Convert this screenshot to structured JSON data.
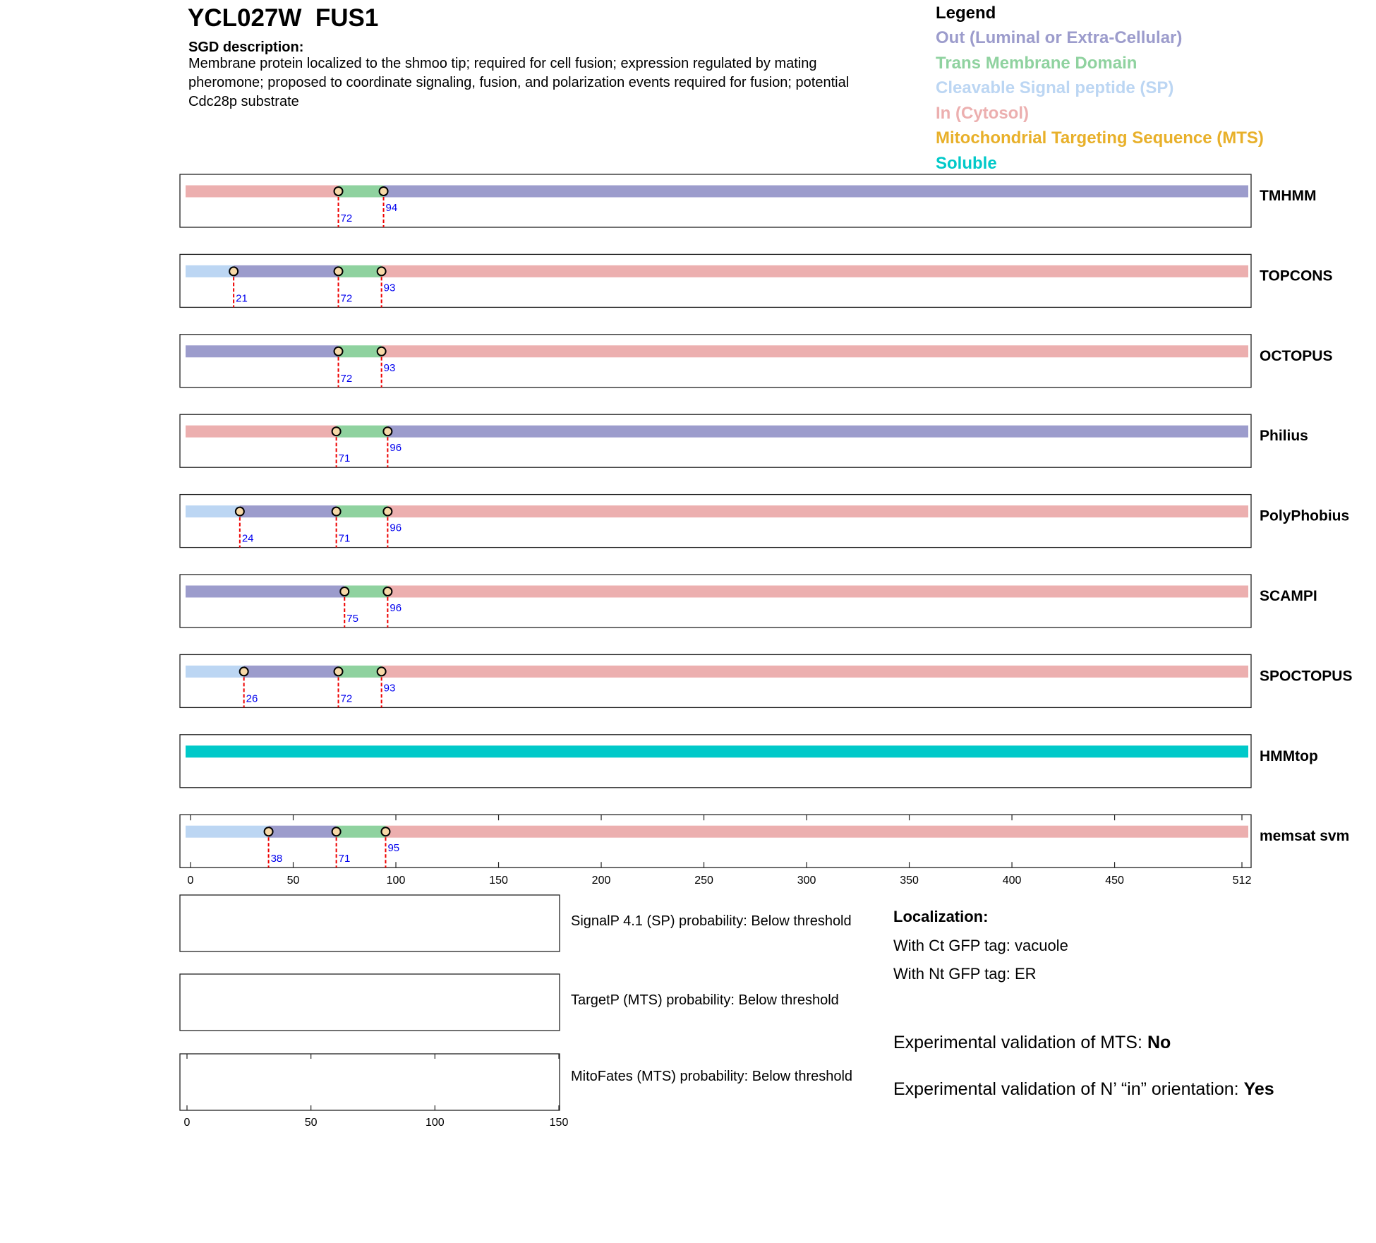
{
  "chart_data": {
    "type": "topology",
    "title": "YCL027W  FUS1",
    "description_label": "SGD description:",
    "description": "Membrane protein localized to the shmoo tip; required for cell fusion; expression regulated by mating pheromone; proposed to coordinate signaling, fusion, and polarization events required for fusion; potential Cdc28p substrate",
    "legend": {
      "title": "Legend",
      "items": [
        {
          "name": "Out (Luminal or Extra-Cellular)",
          "color": "#9c9ccc"
        },
        {
          "name": "Trans Membrane Domain",
          "color": "#8fd29f"
        },
        {
          "name": "Cleavable Signal peptide (SP)",
          "color": "#bcd6f3"
        },
        {
          "name": "In (Cytosol)",
          "color": "#ecafaf"
        },
        {
          "name": "Mitochondrial Targeting Sequence (MTS)",
          "color": "#e8b02a"
        },
        {
          "name": "Soluble",
          "color": "#00c9c9"
        }
      ]
    },
    "xlim": [
      0,
      512
    ],
    "xticks": [
      0,
      50,
      100,
      150,
      200,
      250,
      300,
      350,
      400,
      450,
      512
    ],
    "tracks": [
      {
        "name": "TMHMM",
        "colors": [
          "#ecafaf",
          "#8fd29f",
          "#9c9ccc"
        ],
        "boundaries": [
          72,
          94
        ]
      },
      {
        "name": "TOPCONS",
        "colors": [
          "#bcd6f3",
          "#9c9ccc",
          "#8fd29f",
          "#ecafaf"
        ],
        "boundaries": [
          21,
          72,
          93
        ]
      },
      {
        "name": "OCTOPUS",
        "colors": [
          "#9c9ccc",
          "#8fd29f",
          "#ecafaf"
        ],
        "boundaries": [
          72,
          93
        ]
      },
      {
        "name": "Philius",
        "colors": [
          "#ecafaf",
          "#8fd29f",
          "#9c9ccc"
        ],
        "boundaries": [
          71,
          96
        ]
      },
      {
        "name": "PolyPhobius",
        "colors": [
          "#bcd6f3",
          "#9c9ccc",
          "#8fd29f",
          "#ecafaf"
        ],
        "boundaries": [
          24,
          71,
          96
        ]
      },
      {
        "name": "SCAMPI",
        "colors": [
          "#9c9ccc",
          "#8fd29f",
          "#ecafaf"
        ],
        "boundaries": [
          75,
          96
        ]
      },
      {
        "name": "SPOCTOPUS",
        "colors": [
          "#bcd6f3",
          "#9c9ccc",
          "#8fd29f",
          "#ecafaf"
        ],
        "boundaries": [
          26,
          72,
          93
        ]
      },
      {
        "name": "HMMtop",
        "colors": [
          "#00c9c9"
        ],
        "boundaries": []
      },
      {
        "name": "memsat svm",
        "colors": [
          "#bcd6f3",
          "#9c9ccc",
          "#8fd29f",
          "#ecafaf"
        ],
        "boundaries": [
          38,
          71,
          95
        ]
      }
    ],
    "probability_panels": {
      "xlim": [
        0,
        150
      ],
      "xticks": [
        0,
        50,
        100,
        150
      ],
      "labels": [
        "SignalP 4.1 (SP) probability: Below threshold",
        "TargetP (MTS) probability: Below threshold",
        "MitoFates (MTS) probability: Below threshold"
      ]
    },
    "localization": {
      "title": "Localization:",
      "lines": [
        "With Ct GFP tag: vacuole",
        "With Nt GFP tag: ER"
      ]
    },
    "validation": [
      {
        "text": "Experimental validation of MTS:",
        "answer": "No"
      },
      {
        "text": "Experimental validation of N’ “in” orientation:",
        "answer": "Yes"
      }
    ]
  }
}
